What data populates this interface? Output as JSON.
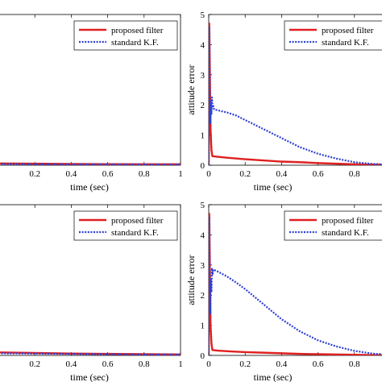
{
  "chart_data": [
    {
      "id": "top-left",
      "type": "line",
      "xlabel": "time (sec)",
      "ylabel": "",
      "xlim": [
        0,
        1
      ],
      "ylim": [
        0,
        5
      ],
      "xticks": [
        0.2,
        0.4,
        0.6,
        0.8,
        1
      ],
      "xtick_labels": [
        "0.2",
        "0.4",
        "0.6",
        "0.8",
        "1"
      ],
      "yticks": [],
      "ytick_labels": [],
      "grid": false,
      "legend": "top-right",
      "series": [
        {
          "name": "proposed filter",
          "color": "#e02020",
          "style": "solid",
          "x": [
            0,
            0.2,
            0.4,
            0.6,
            0.8,
            1.0
          ],
          "y": [
            0.06,
            0.05,
            0.04,
            0.035,
            0.03,
            0.03
          ]
        },
        {
          "name": "standard K.F.",
          "color": "#2b3fd6",
          "style": "dotted",
          "x": [
            0,
            0.2,
            0.4,
            0.6,
            0.8,
            1.0
          ],
          "y": [
            0.04,
            0.035,
            0.03,
            0.03,
            0.025,
            0.025
          ]
        }
      ]
    },
    {
      "id": "top-right",
      "type": "line",
      "xlabel": "time (sec)",
      "ylabel": "attitude error",
      "xlim": [
        0,
        1
      ],
      "ylim": [
        0,
        5
      ],
      "xticks": [
        0,
        0.2,
        0.4,
        0.6,
        0.8
      ],
      "xtick_labels": [
        "0",
        "0.2",
        "0.4",
        "0.6",
        "0.8"
      ],
      "yticks": [
        0,
        1,
        2,
        3,
        4,
        5
      ],
      "ytick_labels": [
        "0",
        "1",
        "2",
        "3",
        "4",
        "5"
      ],
      "grid": false,
      "legend": "top-right",
      "series": [
        {
          "name": "proposed filter",
          "color": "#e02020",
          "style": "solid",
          "x": [
            0,
            0.003,
            0.006,
            0.01,
            0.015,
            0.02,
            0.05,
            0.1,
            0.2,
            0.3,
            0.4,
            0.5,
            0.6,
            0.7,
            0.8,
            0.9,
            1.0
          ],
          "y": [
            0,
            4.7,
            3.2,
            1.2,
            0.5,
            0.3,
            0.28,
            0.25,
            0.2,
            0.16,
            0.12,
            0.1,
            0.07,
            0.05,
            0.03,
            0.02,
            0.01
          ]
        },
        {
          "name": "standard K.F.",
          "color": "#2b3fd6",
          "style": "dotted",
          "x": [
            0,
            0.003,
            0.006,
            0.009,
            0.012,
            0.015,
            0.018,
            0.021,
            0.024,
            0.03,
            0.05,
            0.1,
            0.15,
            0.2,
            0.3,
            0.4,
            0.5,
            0.6,
            0.7,
            0.8,
            0.9,
            1.0
          ],
          "y": [
            0,
            4.6,
            2.2,
            1.4,
            2.1,
            1.7,
            2.25,
            1.9,
            2.0,
            1.85,
            1.82,
            1.75,
            1.65,
            1.5,
            1.2,
            0.9,
            0.6,
            0.38,
            0.22,
            0.1,
            0.04,
            0.02
          ]
        }
      ]
    },
    {
      "id": "bottom-left",
      "type": "line",
      "xlabel": "time (sec)",
      "ylabel": "",
      "xlim": [
        0,
        1
      ],
      "ylim": [
        0,
        5
      ],
      "xticks": [
        0.2,
        0.4,
        0.6,
        0.8,
        1
      ],
      "xtick_labels": [
        "0.2",
        "0.4",
        "0.6",
        "0.8",
        "1"
      ],
      "yticks": [],
      "ytick_labels": [],
      "grid": false,
      "legend": "top-right",
      "series": [
        {
          "name": "proposed filter",
          "color": "#e02020",
          "style": "solid",
          "x": [
            0,
            0.2,
            0.4,
            0.6,
            0.8,
            1.0
          ],
          "y": [
            0.1,
            0.08,
            0.06,
            0.05,
            0.04,
            0.03
          ]
        },
        {
          "name": "standard K.F.",
          "color": "#2b3fd6",
          "style": "dotted",
          "x": [
            0,
            0.2,
            0.4,
            0.6,
            0.8,
            1.0
          ],
          "y": [
            0.07,
            0.06,
            0.05,
            0.04,
            0.03,
            0.03
          ]
        }
      ]
    },
    {
      "id": "bottom-right",
      "type": "line",
      "xlabel": "time (sec)",
      "ylabel": "attitude error",
      "xlim": [
        0,
        1
      ],
      "ylim": [
        0,
        5
      ],
      "xticks": [
        0,
        0.2,
        0.4,
        0.6,
        0.8
      ],
      "xtick_labels": [
        "0",
        "0.2",
        "0.4",
        "0.6",
        "0.8"
      ],
      "yticks": [
        0,
        1,
        2,
        3,
        4,
        5
      ],
      "ytick_labels": [
        "0",
        "1",
        "2",
        "3",
        "4",
        "5"
      ],
      "grid": false,
      "legend": "top-right",
      "series": [
        {
          "name": "proposed filter",
          "color": "#e02020",
          "style": "solid",
          "x": [
            0,
            0.003,
            0.006,
            0.01,
            0.015,
            0.02,
            0.05,
            0.1,
            0.2,
            0.3,
            0.4,
            0.5,
            0.6,
            0.7,
            0.8,
            0.9,
            1.0
          ],
          "y": [
            0,
            4.7,
            3.0,
            1.0,
            0.4,
            0.18,
            0.16,
            0.14,
            0.11,
            0.09,
            0.07,
            0.05,
            0.04,
            0.03,
            0.02,
            0.01,
            0.01
          ]
        },
        {
          "name": "standard K.F.",
          "color": "#2b3fd6",
          "style": "dotted",
          "x": [
            0,
            0.003,
            0.006,
            0.009,
            0.012,
            0.015,
            0.018,
            0.021,
            0.025,
            0.05,
            0.1,
            0.15,
            0.2,
            0.3,
            0.4,
            0.5,
            0.6,
            0.7,
            0.8,
            0.9,
            1.0
          ],
          "y": [
            0,
            4.6,
            2.0,
            1.4,
            2.5,
            2.1,
            2.9,
            2.7,
            2.85,
            2.78,
            2.62,
            2.42,
            2.2,
            1.7,
            1.2,
            0.8,
            0.5,
            0.3,
            0.15,
            0.06,
            0.02
          ]
        }
      ]
    }
  ]
}
